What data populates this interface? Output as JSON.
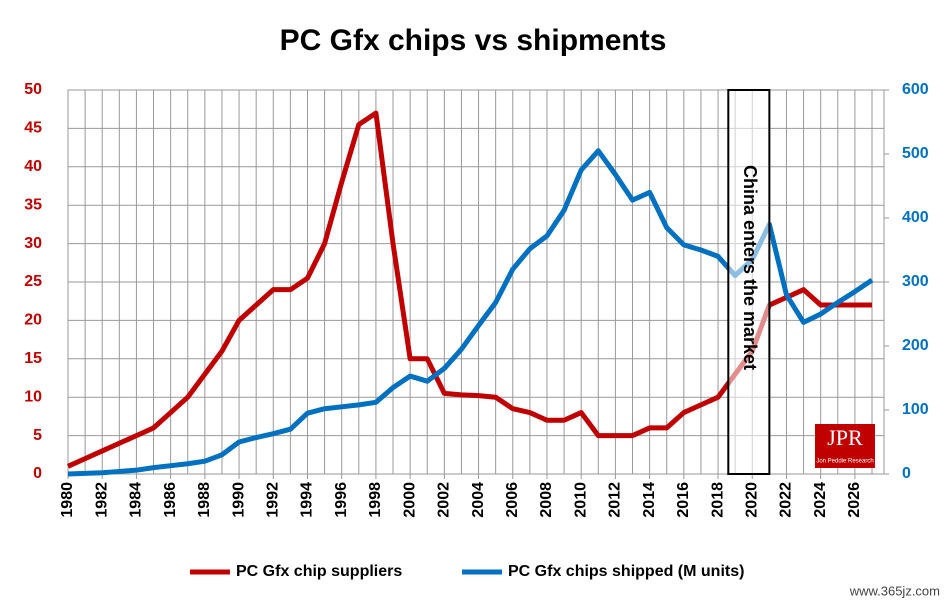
{
  "chart_data": {
    "type": "line",
    "title": "PC Gfx chips vs shipments",
    "annotation": "China enters the market",
    "logo": {
      "mark": "JPR",
      "caption": "Jon Peddie Research"
    },
    "watermark": "www.365jz.com",
    "x": [
      1980,
      1981,
      1982,
      1983,
      1984,
      1985,
      1986,
      1987,
      1988,
      1989,
      1990,
      1991,
      1992,
      1993,
      1994,
      1995,
      1996,
      1997,
      1998,
      1999,
      2000,
      2001,
      2002,
      2003,
      2004,
      2005,
      2006,
      2007,
      2008,
      2009,
      2010,
      2011,
      2012,
      2013,
      2014,
      2015,
      2016,
      2017,
      2018,
      2019,
      2020,
      2021,
      2022,
      2023,
      2024,
      2025,
      2026,
      2027
    ],
    "xlim": [
      1980,
      2027
    ],
    "xticks": [
      1980,
      1982,
      1984,
      1986,
      1988,
      1990,
      1992,
      1994,
      1996,
      1998,
      2000,
      2002,
      2004,
      2006,
      2008,
      2010,
      2012,
      2014,
      2016,
      2018,
      2020,
      2022,
      2024,
      2026
    ],
    "ylim": [
      0,
      50
    ],
    "yticks": [
      0,
      5,
      10,
      15,
      20,
      25,
      30,
      35,
      40,
      45,
      50
    ],
    "y2lim": [
      0,
      600
    ],
    "y2ticks": [
      0,
      100,
      200,
      300,
      400,
      500,
      600
    ],
    "grid": true,
    "legend": "bottom",
    "highlight": [
      2018.6,
      2021
    ],
    "series": [
      {
        "name": "PC Gfx chip suppliers",
        "color": "#c00000",
        "axis": "y",
        "values": [
          1,
          2,
          3,
          4,
          5,
          6,
          8,
          10,
          13,
          16,
          20,
          22,
          24,
          24,
          25.5,
          30,
          38,
          45.5,
          47,
          30,
          15,
          15,
          10.5,
          10.3,
          10.2,
          10,
          8.5,
          8,
          7,
          7,
          8,
          5,
          5,
          5,
          6,
          6,
          8,
          9,
          10,
          13,
          16,
          22,
          23,
          24,
          22,
          22,
          22,
          22
        ]
      },
      {
        "name": "PC Gfx chips shipped (M units)",
        "color": "#0070c0",
        "axis": "y2",
        "values": [
          0,
          1,
          2,
          4,
          6,
          10,
          13,
          16,
          20,
          30,
          50,
          57,
          63,
          70,
          95,
          102,
          105,
          108,
          112,
          135,
          153,
          145,
          165,
          195,
          232,
          268,
          320,
          352,
          372,
          412,
          475,
          505,
          468,
          428,
          440,
          385,
          358,
          350,
          340,
          310,
          335,
          390,
          280,
          237,
          250,
          268,
          285,
          303
        ]
      }
    ]
  }
}
